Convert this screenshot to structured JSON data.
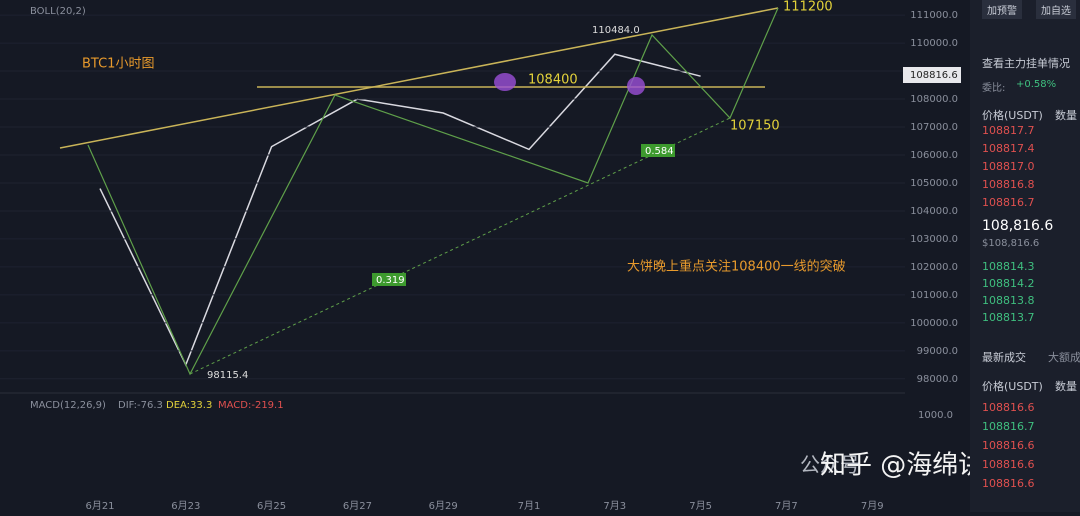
{
  "chart_data": {
    "type": "line",
    "title": "BTC1小时图",
    "indicator": "BOLL(20,2)",
    "categories": [
      "6月21",
      "6月23",
      "6月25",
      "6月27",
      "6月29",
      "7月1",
      "7月3",
      "7月5",
      "7月7",
      "7月9"
    ],
    "series": [
      {
        "name": "BTC",
        "color": "#d9d9e0",
        "values": [
          104800,
          98500,
          106300,
          108000,
          107500,
          106200,
          109600,
          108817,
          null,
          null
        ]
      }
    ],
    "ylim": [
      97600,
      111540
    ],
    "yticks": [
      {
        "value": 111000,
        "label": "111000.0"
      },
      {
        "value": 110000,
        "label": "110000.0"
      },
      {
        "value": 109000,
        "label": "109000.0"
      },
      {
        "value": 108000,
        "label": "108000.0"
      },
      {
        "value": 107000,
        "label": "107000.0"
      },
      {
        "value": 106000,
        "label": "106000.0"
      },
      {
        "value": 105000,
        "label": "105000.0"
      },
      {
        "value": 104000,
        "label": "104000.0"
      },
      {
        "value": 103000,
        "label": "103000.0"
      },
      {
        "value": 102000,
        "label": "102000.0"
      },
      {
        "value": 101000,
        "label": "101000.0"
      },
      {
        "value": 100000,
        "label": "100000.0"
      },
      {
        "value": 99000,
        "label": "99000.0"
      },
      {
        "value": 98000,
        "label": "98000.0"
      }
    ],
    "annotations": {
      "resistance": "111200",
      "level": "108400",
      "support": "107150",
      "high": "110484.0",
      "low": "98115.4",
      "fib_a": "0.584",
      "fib_b": "0.319",
      "note": "大饼晚上重点关注108400一线的突破",
      "price_tag": "108816.6"
    },
    "macd": {
      "label": "MACD(12,26,9)",
      "dif": "DIF:-76.3",
      "dea": "DEA:33.3",
      "macd": "MACD:-219.1",
      "tick": "1000.0"
    }
  },
  "sidebar": {
    "buttons": [
      "加预警",
      "加自选"
    ],
    "title": "查看主力挂单情况",
    "ratio_label": "委比:",
    "ratio": "+0.58%",
    "header": [
      "价格(USDT)",
      "数量"
    ],
    "asks": [
      "108817.7",
      "108817.4",
      "108817.0",
      "108816.8",
      "108816.7"
    ],
    "last": "108,816.6",
    "last_usd": "$108,816.6",
    "bids": [
      "108814.3",
      "108814.2",
      "108813.8",
      "108813.7"
    ],
    "tabs": [
      "最新成交",
      "大额成"
    ],
    "trades": [
      "108816.6",
      "108816.7",
      "108816.6",
      "108816.6",
      "108816.6"
    ]
  },
  "watermark": {
    "account": "公众号",
    "brand": "知乎 @海绵讲币"
  }
}
